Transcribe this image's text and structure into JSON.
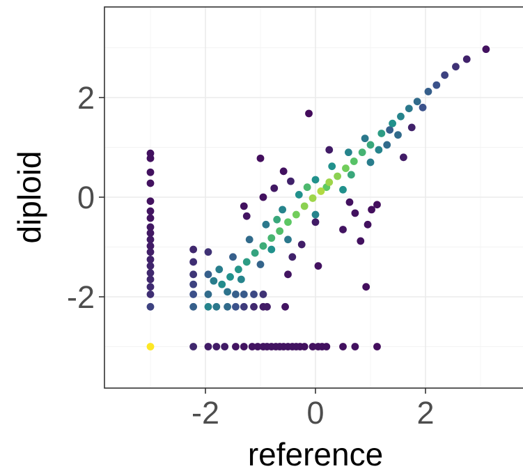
{
  "chart_data": {
    "type": "scatter",
    "title": "",
    "xlabel": "reference",
    "ylabel": "diploid",
    "xlim": [
      -3.8,
      3.8
    ],
    "ylim": [
      -3.8,
      3.8
    ],
    "xticks": [
      -2,
      0,
      2
    ],
    "yticks": [
      -2,
      0,
      2
    ],
    "xtick_labels": [
      "-2",
      "0",
      "2"
    ],
    "ytick_labels": [
      "-2",
      "0",
      "2"
    ],
    "grid": true,
    "legend": "none",
    "color_scale": "viridis (point density)",
    "colors": {
      "low_density": "#440154",
      "mid_low": "#3b528b",
      "mid": "#21918c",
      "mid_high": "#5ec962",
      "high_density": "#fde725"
    },
    "points": [
      {
        "x": -3.0,
        "y": -3.0,
        "d": 1.0
      },
      {
        "x": -3.0,
        "y": 0.88,
        "d": 0.05
      },
      {
        "x": -3.0,
        "y": 0.78,
        "d": 0.05
      },
      {
        "x": -3.0,
        "y": 0.5,
        "d": 0.05
      },
      {
        "x": -3.0,
        "y": 0.28,
        "d": 0.05
      },
      {
        "x": -3.0,
        "y": -0.08,
        "d": 0.05
      },
      {
        "x": -3.0,
        "y": -0.28,
        "d": 0.06
      },
      {
        "x": -3.0,
        "y": -0.42,
        "d": 0.06
      },
      {
        "x": -3.0,
        "y": -0.6,
        "d": 0.07
      },
      {
        "x": -3.0,
        "y": -0.72,
        "d": 0.07
      },
      {
        "x": -3.0,
        "y": -0.85,
        "d": 0.08
      },
      {
        "x": -3.0,
        "y": -0.98,
        "d": 0.08
      },
      {
        "x": -3.0,
        "y": -1.1,
        "d": 0.09
      },
      {
        "x": -3.0,
        "y": -1.25,
        "d": 0.1
      },
      {
        "x": -3.0,
        "y": -1.38,
        "d": 0.11
      },
      {
        "x": -3.0,
        "y": -1.52,
        "d": 0.12
      },
      {
        "x": -3.0,
        "y": -1.65,
        "d": 0.12
      },
      {
        "x": -3.0,
        "y": -1.8,
        "d": 0.13
      },
      {
        "x": -3.0,
        "y": -1.95,
        "d": 0.14
      },
      {
        "x": -3.0,
        "y": -2.2,
        "d": 0.2
      },
      {
        "x": -2.22,
        "y": -3.0,
        "d": 0.12
      },
      {
        "x": -1.95,
        "y": -3.0,
        "d": 0.08
      },
      {
        "x": -1.8,
        "y": -3.0,
        "d": 0.08
      },
      {
        "x": -1.65,
        "y": -3.0,
        "d": 0.08
      },
      {
        "x": -1.45,
        "y": -3.0,
        "d": 0.06
      },
      {
        "x": -1.3,
        "y": -3.0,
        "d": 0.06
      },
      {
        "x": -1.15,
        "y": -3.0,
        "d": 0.06
      },
      {
        "x": -1.05,
        "y": -3.0,
        "d": 0.06
      },
      {
        "x": -0.95,
        "y": -3.0,
        "d": 0.06
      },
      {
        "x": -0.88,
        "y": -3.0,
        "d": 0.06
      },
      {
        "x": -0.8,
        "y": -3.0,
        "d": 0.06
      },
      {
        "x": -0.72,
        "y": -3.0,
        "d": 0.06
      },
      {
        "x": -0.65,
        "y": -3.0,
        "d": 0.06
      },
      {
        "x": -0.58,
        "y": -3.0,
        "d": 0.06
      },
      {
        "x": -0.5,
        "y": -3.0,
        "d": 0.06
      },
      {
        "x": -0.42,
        "y": -3.0,
        "d": 0.06
      },
      {
        "x": -0.35,
        "y": -3.0,
        "d": 0.06
      },
      {
        "x": -0.28,
        "y": -3.0,
        "d": 0.05
      },
      {
        "x": -0.2,
        "y": -3.0,
        "d": 0.05
      },
      {
        "x": -0.05,
        "y": -3.0,
        "d": 0.05
      },
      {
        "x": 0.05,
        "y": -3.0,
        "d": 0.05
      },
      {
        "x": 0.12,
        "y": -3.0,
        "d": 0.05
      },
      {
        "x": 0.2,
        "y": -3.0,
        "d": 0.05
      },
      {
        "x": 0.5,
        "y": -3.0,
        "d": 0.05
      },
      {
        "x": 0.72,
        "y": -3.0,
        "d": 0.05
      },
      {
        "x": 1.12,
        "y": -3.0,
        "d": 0.04
      },
      {
        "x": -2.22,
        "y": -1.05,
        "d": 0.12
      },
      {
        "x": -2.22,
        "y": -1.3,
        "d": 0.14
      },
      {
        "x": -2.22,
        "y": -1.55,
        "d": 0.16
      },
      {
        "x": -2.22,
        "y": -1.75,
        "d": 0.2
      },
      {
        "x": -2.22,
        "y": -1.95,
        "d": 0.24
      },
      {
        "x": -2.22,
        "y": -2.2,
        "d": 0.3
      },
      {
        "x": -1.95,
        "y": -1.1,
        "d": 0.15
      },
      {
        "x": -1.95,
        "y": -1.55,
        "d": 0.3
      },
      {
        "x": -1.95,
        "y": -1.95,
        "d": 0.35
      },
      {
        "x": -1.95,
        "y": -2.2,
        "d": 0.45
      },
      {
        "x": -1.8,
        "y": -2.2,
        "d": 0.4
      },
      {
        "x": -1.6,
        "y": -2.2,
        "d": 0.35
      },
      {
        "x": -1.45,
        "y": -2.2,
        "d": 0.25
      },
      {
        "x": -1.3,
        "y": -2.2,
        "d": 0.18
      },
      {
        "x": -1.12,
        "y": -2.2,
        "d": 0.12
      },
      {
        "x": -0.95,
        "y": -2.2,
        "d": 0.08
      },
      {
        "x": -0.88,
        "y": -2.2,
        "d": 0.08
      },
      {
        "x": -0.55,
        "y": -2.2,
        "d": 0.06
      },
      {
        "x": -1.45,
        "y": -1.95,
        "d": 0.3
      },
      {
        "x": -1.3,
        "y": -1.95,
        "d": 0.28
      },
      {
        "x": -1.12,
        "y": -1.95,
        "d": 0.22
      },
      {
        "x": -0.95,
        "y": -1.95,
        "d": 0.15
      },
      {
        "x": -0.12,
        "y": 1.68,
        "d": 0.03
      },
      {
        "x": -1.0,
        "y": 0.78,
        "d": 0.04
      },
      {
        "x": -0.58,
        "y": 0.52,
        "d": 0.05
      },
      {
        "x": -1.3,
        "y": -0.18,
        "d": 0.05
      },
      {
        "x": -1.25,
        "y": -0.38,
        "d": 0.06
      },
      {
        "x": 1.12,
        "y": -0.15,
        "d": 0.04
      },
      {
        "x": 1.02,
        "y": -0.25,
        "d": 0.04
      },
      {
        "x": 0.62,
        "y": -0.1,
        "d": 0.05
      },
      {
        "x": 0.95,
        "y": -0.55,
        "d": 0.05
      },
      {
        "x": 0.72,
        "y": -0.32,
        "d": 0.05
      },
      {
        "x": 0.5,
        "y": -0.65,
        "d": 0.06
      },
      {
        "x": 0.82,
        "y": -0.88,
        "d": 0.05
      },
      {
        "x": 0.05,
        "y": -1.38,
        "d": 0.05
      },
      {
        "x": -0.5,
        "y": -1.55,
        "d": 0.06
      },
      {
        "x": 0.92,
        "y": -1.8,
        "d": 0.04
      },
      {
        "x": 0.0,
        "y": -0.5,
        "d": 0.08
      },
      {
        "x": -0.25,
        "y": -0.95,
        "d": 0.09
      },
      {
        "x": -0.42,
        "y": -1.2,
        "d": 0.1
      },
      {
        "x": 1.6,
        "y": 0.8,
        "d": 0.08
      },
      {
        "x": 1.75,
        "y": 1.4,
        "d": 0.1
      },
      {
        "x": 1.35,
        "y": 1.35,
        "d": 0.3
      },
      {
        "x": 0.25,
        "y": 0.95,
        "d": 0.08
      },
      {
        "x": -0.45,
        "y": 0.32,
        "d": 0.1
      },
      {
        "x": -0.95,
        "y": 0.0,
        "d": 0.05
      },
      {
        "x": -0.75,
        "y": 0.18,
        "d": 0.07
      },
      {
        "x": 3.1,
        "y": 2.97,
        "d": 0.05
      },
      {
        "x": 2.75,
        "y": 2.77,
        "d": 0.1
      },
      {
        "x": 2.55,
        "y": 2.62,
        "d": 0.15
      },
      {
        "x": 2.35,
        "y": 2.45,
        "d": 0.2
      },
      {
        "x": 2.2,
        "y": 2.25,
        "d": 0.25
      },
      {
        "x": 2.05,
        "y": 2.12,
        "d": 0.3
      },
      {
        "x": 1.85,
        "y": 1.92,
        "d": 0.35
      },
      {
        "x": 1.7,
        "y": 1.78,
        "d": 0.4
      },
      {
        "x": 1.55,
        "y": 1.62,
        "d": 0.45
      },
      {
        "x": 1.4,
        "y": 1.48,
        "d": 0.5
      },
      {
        "x": 1.2,
        "y": 1.28,
        "d": 0.55
      },
      {
        "x": 1.0,
        "y": 1.05,
        "d": 0.6
      },
      {
        "x": 0.85,
        "y": 0.9,
        "d": 0.65
      },
      {
        "x": 0.7,
        "y": 0.72,
        "d": 0.72
      },
      {
        "x": 0.55,
        "y": 0.58,
        "d": 0.78
      },
      {
        "x": 0.4,
        "y": 0.42,
        "d": 0.82
      },
      {
        "x": 0.25,
        "y": 0.3,
        "d": 0.85
      },
      {
        "x": 0.1,
        "y": 0.12,
        "d": 0.88
      },
      {
        "x": -0.05,
        "y": -0.02,
        "d": 0.85
      },
      {
        "x": -0.2,
        "y": -0.18,
        "d": 0.82
      },
      {
        "x": -0.35,
        "y": -0.35,
        "d": 0.78
      },
      {
        "x": -0.5,
        "y": -0.5,
        "d": 0.74
      },
      {
        "x": -0.65,
        "y": -0.68,
        "d": 0.7
      },
      {
        "x": -0.8,
        "y": -0.82,
        "d": 0.66
      },
      {
        "x": -0.95,
        "y": -0.98,
        "d": 0.62
      },
      {
        "x": -1.1,
        "y": -1.12,
        "d": 0.58
      },
      {
        "x": -1.25,
        "y": -1.3,
        "d": 0.55
      },
      {
        "x": -1.4,
        "y": -1.45,
        "d": 0.52
      },
      {
        "x": -1.55,
        "y": -1.6,
        "d": 0.5
      },
      {
        "x": -1.7,
        "y": -1.75,
        "d": 0.48
      },
      {
        "x": -1.85,
        "y": -1.68,
        "d": 0.42
      },
      {
        "x": -1.2,
        "y": -0.85,
        "d": 0.35
      },
      {
        "x": -0.9,
        "y": -0.55,
        "d": 0.4
      },
      {
        "x": -0.6,
        "y": -0.25,
        "d": 0.45
      },
      {
        "x": -0.3,
        "y": 0.05,
        "d": 0.5
      },
      {
        "x": 0.0,
        "y": 0.35,
        "d": 0.5
      },
      {
        "x": 0.3,
        "y": 0.62,
        "d": 0.5
      },
      {
        "x": 0.6,
        "y": 0.9,
        "d": 0.45
      },
      {
        "x": 0.9,
        "y": 1.18,
        "d": 0.4
      },
      {
        "x": -1.5,
        "y": -1.2,
        "d": 0.3
      },
      {
        "x": -1.0,
        "y": -1.35,
        "d": 0.32
      },
      {
        "x": -0.5,
        "y": -0.85,
        "d": 0.4
      },
      {
        "x": 0.0,
        "y": -0.35,
        "d": 0.45
      },
      {
        "x": 0.5,
        "y": 0.15,
        "d": 0.5
      },
      {
        "x": 1.0,
        "y": 0.7,
        "d": 0.42
      },
      {
        "x": 1.3,
        "y": 1.05,
        "d": 0.35
      },
      {
        "x": -0.7,
        "y": -0.45,
        "d": 0.6
      },
      {
        "x": -0.15,
        "y": 0.2,
        "d": 0.68
      },
      {
        "x": 0.2,
        "y": 0.2,
        "d": 0.75
      },
      {
        "x": -1.6,
        "y": -1.9,
        "d": 0.38
      },
      {
        "x": -1.75,
        "y": -1.45,
        "d": 0.42
      },
      {
        "x": -1.35,
        "y": -1.65,
        "d": 0.45
      },
      {
        "x": -0.8,
        "y": -1.05,
        "d": 0.5
      },
      {
        "x": 0.65,
        "y": 0.45,
        "d": 0.6
      },
      {
        "x": 1.15,
        "y": 0.95,
        "d": 0.45
      },
      {
        "x": 1.5,
        "y": 1.25,
        "d": 0.35
      },
      {
        "x": 1.95,
        "y": 1.8,
        "d": 0.25
      }
    ]
  }
}
